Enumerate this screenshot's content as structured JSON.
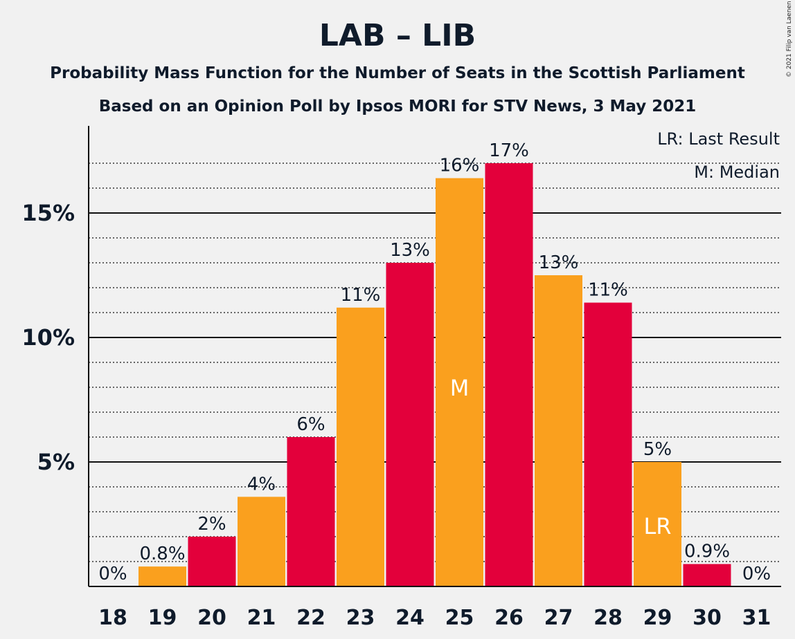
{
  "chart_data": {
    "type": "bar",
    "title": "LAB – LIB",
    "subtitle": "Probability Mass Function for the Number of Seats in the Scottish Parliament",
    "subtitle2": "Based on an Opinion Poll by Ipsos MORI for STV News, 3 May 2021",
    "copyright": "© 2021 Filip van Laenen",
    "categories": [
      "18",
      "19",
      "20",
      "21",
      "22",
      "23",
      "24",
      "25",
      "26",
      "27",
      "28",
      "29",
      "30",
      "31"
    ],
    "values": [
      0,
      0.8,
      2.0,
      3.6,
      6.0,
      11.2,
      13.0,
      16.4,
      17.0,
      12.5,
      11.4,
      5.0,
      0.9,
      0
    ],
    "data_labels": [
      "0%",
      "0.8%",
      "2%",
      "4%",
      "6%",
      "11%",
      "13%",
      "16%",
      "17%",
      "13%",
      "11%",
      "5%",
      "0.9%",
      "0%"
    ],
    "bar_colors": [
      "#faa01e",
      "#faa01e",
      "#e3003b",
      "#faa01e",
      "#e3003b",
      "#faa01e",
      "#e3003b",
      "#faa01e",
      "#e3003b",
      "#faa01e",
      "#e3003b",
      "#faa01e",
      "#e3003b",
      "#faa01e"
    ],
    "markers": {
      "25": "M",
      "29": "LR"
    },
    "ylim": [
      0,
      18.5
    ],
    "yticks": [
      {
        "value": 5,
        "label": "5%"
      },
      {
        "value": 10,
        "label": "10%"
      },
      {
        "value": 15,
        "label": "15%"
      }
    ],
    "minor_grid_step": 1,
    "grid": true,
    "legend": [
      "LR: Last Result",
      "M: Median"
    ],
    "legend_position": "top-right",
    "xlabel": "",
    "ylabel": ""
  }
}
